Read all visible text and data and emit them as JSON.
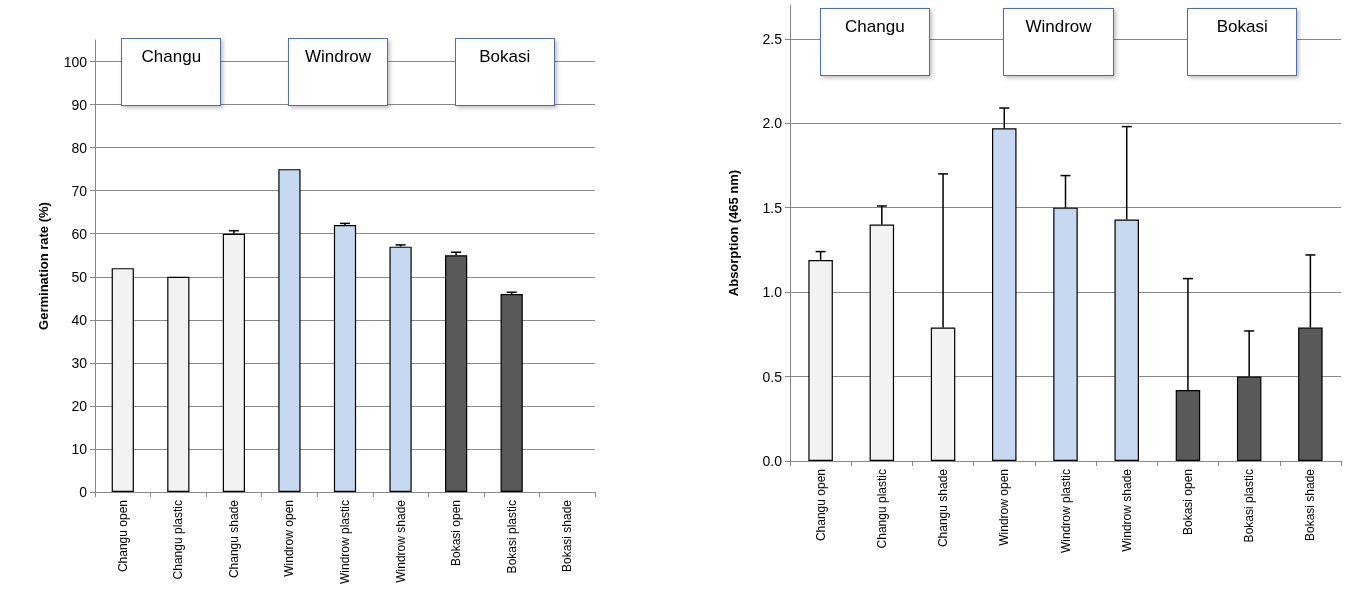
{
  "chart_data": [
    {
      "type": "bar",
      "ylabel": "Germination rate (%)",
      "categories": [
        "Changu open",
        "Changu plastic",
        "Changu shade",
        "Windrow open",
        "Windrow plastic",
        "Windrow shade",
        "Bokasi open",
        "Bokasi plastic",
        "Bokasi shade"
      ],
      "values": [
        52,
        50,
        60,
        75,
        62,
        57,
        55,
        46,
        null
      ],
      "errors": [
        null,
        null,
        [
          60,
          60.7
        ],
        null,
        [
          62,
          62.4
        ],
        [
          57,
          57.4
        ],
        [
          55,
          55.7
        ],
        [
          46,
          46.4
        ],
        null
      ],
      "colors": [
        "#f2f2f2",
        "#f2f2f2",
        "#f2f2f2",
        "#c6d9f1",
        "#c6d9f1",
        "#c6d9f1",
        "#595959",
        "#595959",
        "#595959"
      ],
      "ylim": [
        0,
        105
      ],
      "yticks": [
        0,
        10,
        20,
        30,
        40,
        50,
        60,
        70,
        80,
        90,
        100
      ],
      "grid": "y",
      "annotations": [
        "Changu",
        "Windrow",
        "Bokasi"
      ]
    },
    {
      "type": "bar",
      "ylabel": "Absorption (465 nm)",
      "categories": [
        "Changu open",
        "Changu plastic",
        "Changu shade",
        "Windrow open",
        "Windrow plastic",
        "Windrow shade",
        "Bokasi open",
        "Bokasi plastic",
        "Bokasi shade"
      ],
      "values": [
        1.19,
        1.4,
        0.79,
        1.97,
        1.5,
        1.43,
        0.42,
        0.5,
        0.79
      ],
      "errors": [
        [
          1.19,
          1.24
        ],
        [
          1.4,
          1.51
        ],
        [
          0.79,
          1.7
        ],
        [
          1.97,
          2.09
        ],
        [
          1.5,
          1.69
        ],
        [
          1.43,
          1.98
        ],
        [
          0.42,
          1.08
        ],
        [
          0.5,
          0.77
        ],
        [
          0.79,
          1.22
        ]
      ],
      "colors": [
        "#f2f2f2",
        "#f2f2f2",
        "#f2f2f2",
        "#c6d9f1",
        "#c6d9f1",
        "#c6d9f1",
        "#595959",
        "#595959",
        "#595959"
      ],
      "ylim": [
        0,
        2.7
      ],
      "yticks": [
        {
          "value": 0,
          "label": "0.0"
        },
        {
          "value": 0.5,
          "label": "0.5"
        },
        {
          "value": 1,
          "label": "1.0"
        },
        {
          "value": 1.5,
          "label": "1.5"
        },
        {
          "value": 2,
          "label": "2.0"
        },
        {
          "value": 2.5,
          "label": "2.5"
        }
      ],
      "grid": "y",
      "annotations": [
        "Changu",
        "Windrow",
        "Bokasi"
      ]
    }
  ]
}
